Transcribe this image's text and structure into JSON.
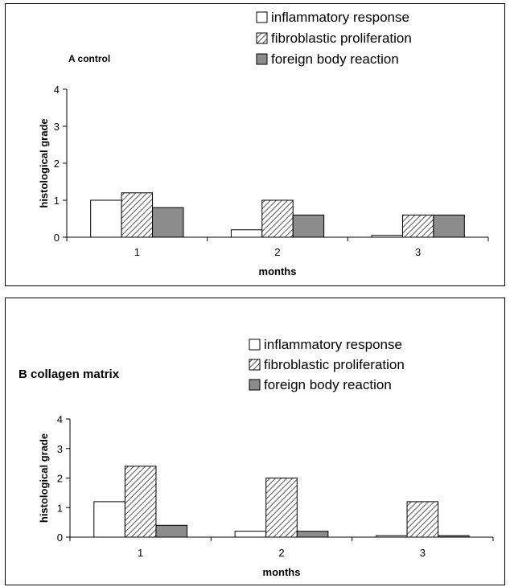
{
  "chart_data": [
    {
      "type": "bar",
      "title": "A control",
      "xlabel": "months",
      "ylabel": "histological grade",
      "categories": [
        "1",
        "2",
        "3"
      ],
      "yticks": [
        "0",
        "1",
        "2",
        "3",
        "4"
      ],
      "ylim": [
        0,
        4
      ],
      "grid": false,
      "legend_position": "top-right",
      "series": [
        {
          "name": "inflammatory response",
          "values": [
            1.0,
            0.2,
            0.05
          ]
        },
        {
          "name": "fibroblastic proliferation",
          "values": [
            1.2,
            1.0,
            0.6
          ]
        },
        {
          "name": "foreign body reaction",
          "values": [
            0.8,
            0.6,
            0.6
          ]
        }
      ]
    },
    {
      "type": "bar",
      "title": "B collagen matrix",
      "xlabel": "months",
      "ylabel": "histological grade",
      "categories": [
        "1",
        "2",
        "3"
      ],
      "yticks": [
        "0",
        "1",
        "2",
        "3",
        "4"
      ],
      "ylim": [
        0,
        4
      ],
      "grid": false,
      "legend_position": "top-right",
      "series": [
        {
          "name": "inflammatory response",
          "values": [
            1.2,
            0.2,
            0.05
          ]
        },
        {
          "name": "fibroblastic proliferation",
          "values": [
            2.4,
            2.0,
            1.2
          ]
        },
        {
          "name": "foreign body reaction",
          "values": [
            0.4,
            0.2,
            0.05
          ]
        }
      ]
    }
  ],
  "series_fills": [
    "#ffffff",
    "hatch",
    "#8c8c8c"
  ]
}
